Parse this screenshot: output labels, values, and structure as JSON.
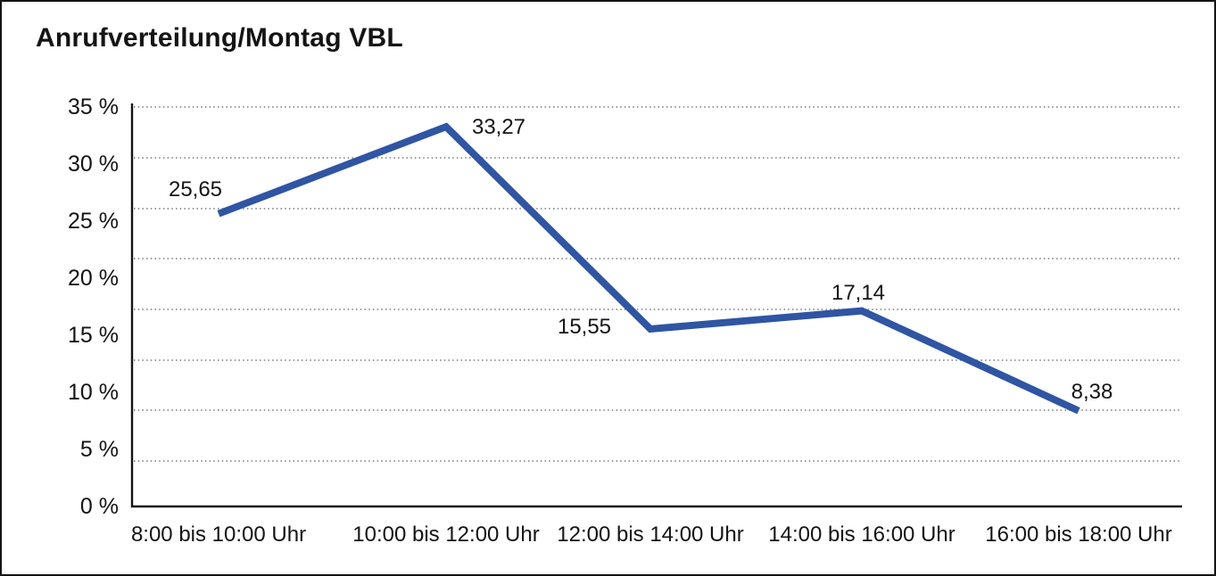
{
  "title": "Anrufverteilung/Montag VBL",
  "chart_data": {
    "type": "line",
    "title": "Anrufverteilung/Montag VBL",
    "categories": [
      "8:00 bis 10:00 Uhr",
      "10:00 bis 12:00 Uhr",
      "12:00 bis 14:00 Uhr",
      "14:00 bis 16:00 Uhr",
      "16:00 bis 18:00 Uhr"
    ],
    "values": [
      25.65,
      33.27,
      15.55,
      17.14,
      8.38
    ],
    "point_labels": [
      "25,65",
      "33,27",
      "15,55",
      "17,14",
      "8,38"
    ],
    "y_tick_labels": [
      "35 %",
      "30 %",
      "25 %",
      "20 %",
      "15 %",
      "10 %",
      "5 %",
      "0 %"
    ],
    "ylim": [
      0,
      35
    ],
    "xlabel": "",
    "ylabel": "",
    "legend": "none",
    "grid": "horizontal-dotted",
    "colors": {
      "line": "#2F55A3",
      "grid": "#7a7a7a",
      "axis": "#141414",
      "text": "#141414",
      "background": "#ffffff"
    }
  }
}
